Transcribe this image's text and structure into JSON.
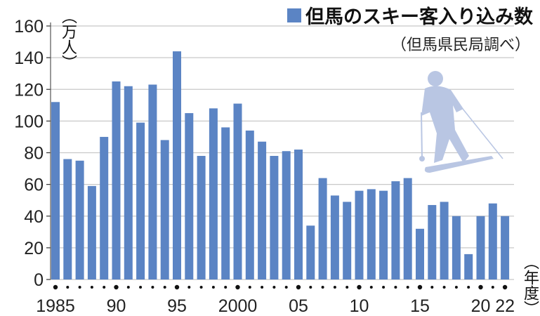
{
  "chart_data": {
    "type": "bar",
    "title": "但馬のスキー客入り込み数",
    "subtitle": "（但馬県民局調べ）",
    "ylabel": "（万人）",
    "xlabel": "（年度）",
    "ylim": [
      0,
      160
    ],
    "yticks": [
      0,
      20,
      40,
      60,
      80,
      100,
      120,
      140,
      160
    ],
    "xtick_labels": [
      {
        "index": 0,
        "label": "1985"
      },
      {
        "index": 5,
        "label": "90"
      },
      {
        "index": 10,
        "label": "95"
      },
      {
        "index": 15,
        "label": "2000"
      },
      {
        "index": 20,
        "label": "05"
      },
      {
        "index": 25,
        "label": "10"
      },
      {
        "index": 30,
        "label": "15"
      },
      {
        "index": 35,
        "label": "20"
      },
      {
        "index": 37,
        "label": "22"
      }
    ],
    "categories": [
      1985,
      1986,
      1987,
      1988,
      1989,
      1990,
      1991,
      1992,
      1993,
      1994,
      1995,
      1996,
      1997,
      1998,
      1999,
      2000,
      2001,
      2002,
      2003,
      2004,
      2005,
      2006,
      2007,
      2008,
      2009,
      2010,
      2011,
      2012,
      2013,
      2014,
      2015,
      2016,
      2017,
      2018,
      2019,
      2020,
      2021,
      2022
    ],
    "values": [
      112,
      76,
      75,
      59,
      90,
      125,
      122,
      99,
      123,
      88,
      144,
      105,
      78,
      108,
      96,
      111,
      94,
      87,
      78,
      81,
      82,
      34,
      64,
      53,
      49,
      56,
      57,
      56,
      62,
      64,
      32,
      47,
      49,
      40,
      16,
      40,
      48,
      40
    ],
    "grid": true,
    "legend": "top-right",
    "bar_color": "#5b84c4"
  }
}
